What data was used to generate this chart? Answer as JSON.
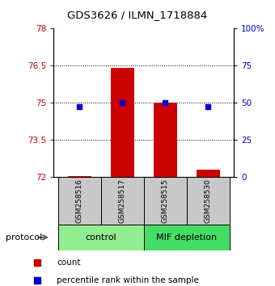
{
  "title": "GDS3626 / ILMN_1718884",
  "samples": [
    "GSM258516",
    "GSM258517",
    "GSM258515",
    "GSM258530"
  ],
  "groups": [
    {
      "name": "control",
      "indices": [
        0,
        1
      ],
      "color": "#90EE90"
    },
    {
      "name": "MIF depletion",
      "indices": [
        2,
        3
      ],
      "color": "#44DD66"
    }
  ],
  "bar_values": [
    72.05,
    76.4,
    75.0,
    72.3
  ],
  "bar_base": 72.0,
  "bar_color": "#CC0000",
  "dot_values": [
    74.85,
    75.0,
    75.0,
    74.85
  ],
  "dot_color": "#0000CC",
  "ylim_left": [
    72,
    78
  ],
  "ylim_right": [
    0,
    100
  ],
  "yticks_left": [
    72,
    73.5,
    75,
    76.5,
    78
  ],
  "ytick_labels_left": [
    "72",
    "73.5",
    "75",
    "76.5",
    "78"
  ],
  "yticks_right": [
    0,
    25,
    50,
    75,
    100
  ],
  "ytick_labels_right": [
    "0",
    "25",
    "50",
    "75",
    "100%"
  ],
  "hlines": [
    73.5,
    75,
    76.5
  ],
  "background_color": "#ffffff",
  "plot_bg_color": "#ffffff",
  "sample_box_color": "#C8C8C8",
  "bar_width": 0.55,
  "dot_size": 22,
  "legend_items": [
    {
      "color": "#CC0000",
      "label": "count"
    },
    {
      "color": "#0000CC",
      "label": "percentile rank within the sample"
    }
  ],
  "protocol_label": "protocol",
  "ylabel_left_color": "#CC0000",
  "ylabel_right_color": "#0000CC",
  "title_fontsize": 9.5,
  "tick_fontsize": 7.5,
  "sample_fontsize": 6.5,
  "group_fontsize": 8,
  "legend_fontsize": 7.5,
  "protocol_fontsize": 8
}
